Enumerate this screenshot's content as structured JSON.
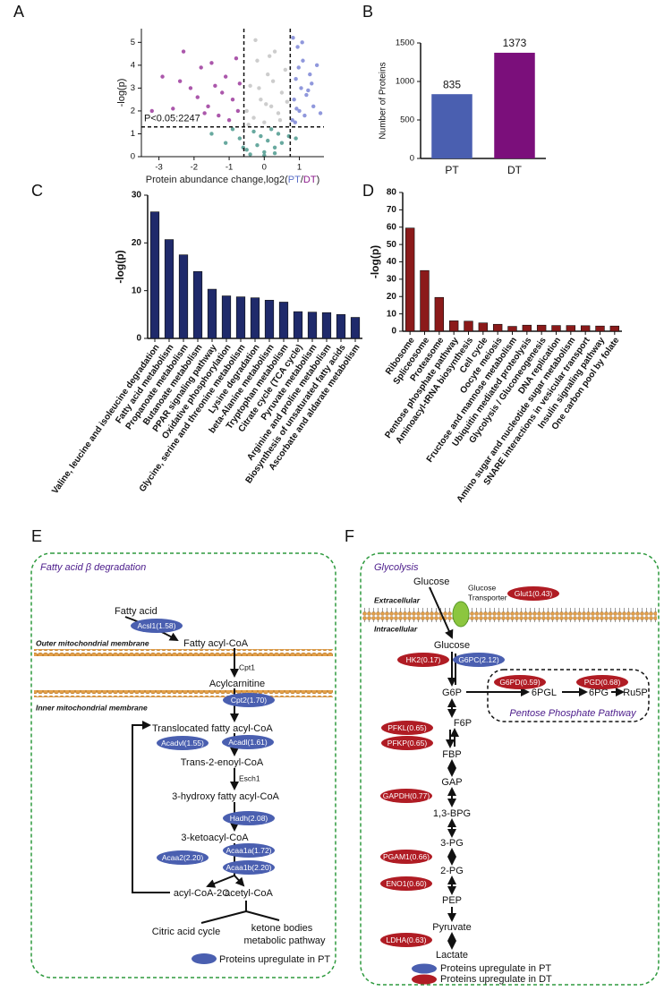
{
  "chart_data": [
    {
      "type": "scatter",
      "panel": "A",
      "ylabel": "-log(p)",
      "xlabel": [
        "Protein abundance change,log2(",
        "PT",
        "/",
        "DT",
        ")"
      ],
      "xlabel_colors": [
        "#222222",
        "#5b6fc7",
        "#222222",
        "#8b1a8b",
        "#222222"
      ],
      "annotation": "P<0.05:2247",
      "xlim": [
        -3.5,
        1.7
      ],
      "ylim": [
        0,
        5.6
      ],
      "xticks": [
        -3,
        -2,
        -1,
        0,
        1
      ],
      "yticks": [
        0,
        1,
        2,
        3,
        4,
        5
      ],
      "thresholds": {
        "x": [
          -0.58,
          0.74
        ],
        "y": 1.3
      },
      "series": [
        {
          "color": "#9c3a9c",
          "x": [
            -2.9,
            -2.6,
            -2.3,
            -2.1,
            -1.9,
            -1.8,
            -1.6,
            -1.5,
            -1.4,
            -1.3,
            -1.2,
            -1.1,
            -1.0,
            -0.9,
            -0.8,
            -0.75,
            -0.7,
            -1.7,
            -2.4,
            -3.2
          ],
          "y": [
            3.5,
            2.1,
            4.6,
            3.0,
            2.6,
            3.9,
            2.2,
            4.1,
            3.1,
            1.8,
            2.8,
            3.5,
            1.6,
            2.5,
            4.3,
            2.0,
            3.2,
            1.9,
            3.3,
            2.0
          ]
        },
        {
          "color": "#7d86d6",
          "x": [
            0.8,
            0.85,
            0.9,
            0.95,
            1.0,
            1.05,
            1.1,
            1.15,
            1.2,
            1.3,
            1.4,
            1.5,
            0.82,
            0.88,
            0.98,
            1.25,
            1.6,
            1.08,
            0.92,
            1.35
          ],
          "y": [
            1.6,
            2.5,
            3.4,
            4.8,
            2.0,
            3.0,
            4.2,
            1.8,
            2.7,
            3.6,
            2.2,
            4.0,
            5.2,
            1.5,
            3.9,
            2.9,
            1.9,
            5.0,
            2.1,
            3.2
          ]
        },
        {
          "color": "#c4c4c4",
          "x": [
            -0.5,
            -0.4,
            -0.3,
            -0.2,
            -0.1,
            0,
            0.1,
            0.2,
            0.3,
            0.4,
            0.5,
            0.6,
            -0.45,
            -0.25,
            0.05,
            0.25,
            0.45,
            0.65,
            -0.15,
            0.15
          ],
          "y": [
            2.0,
            3.1,
            1.7,
            4.2,
            2.5,
            1.5,
            3.6,
            2.2,
            4.6,
            1.9,
            2.8,
            3.8,
            1.4,
            5.1,
            2.3,
            3.3,
            1.6,
            2.4,
            3.0,
            4.4
          ]
        },
        {
          "color": "#4e9a8e",
          "x": [
            -1.5,
            -1.1,
            -0.9,
            -0.7,
            -0.5,
            -0.3,
            -0.2,
            -0.1,
            0,
            0.1,
            0.2,
            0.3,
            0.4,
            0.5,
            0.7,
            0.9,
            -0.4,
            0,
            0.3,
            -0.6
          ],
          "y": [
            1.0,
            0.6,
            1.2,
            0.8,
            0.3,
            1.1,
            0.5,
            0.9,
            0.2,
            0.7,
            1.2,
            0.4,
            1.0,
            0.6,
            0.9,
            0.8,
            0.1,
            0.05,
            0.15,
            0.4
          ]
        }
      ]
    },
    {
      "type": "bar",
      "panel": "B",
      "ylabel": "Number of Proteins",
      "categories": [
        "PT",
        "DT"
      ],
      "values": [
        835,
        1373
      ],
      "colors": [
        "#4a5fb0",
        "#7b0f7b"
      ],
      "ylim": [
        0,
        1500
      ],
      "yticks": [
        0,
        500,
        1000,
        1500
      ]
    },
    {
      "type": "bar",
      "panel": "C",
      "ylabel": "-log(p)",
      "categories": [
        "Valine, leucine and isoleucine degradation",
        "Fatty acid metabolism",
        "Propanoate metabolism",
        "Butanoate metabolism",
        "PPAR signaling pathway",
        "Oxidative phosphorylation",
        "Glycine, serine and threonine metabolism",
        "Lysine degradation",
        "beta-Alanine metabolism",
        "Tryptophan metabolism",
        "Citrate cycle (TCA cycle)",
        "Pyruvate metabolism",
        "Arginine and proline metabolism",
        "Biosynthesis of unsaturated fatty acids",
        "Ascorbate and aldarate metabolism"
      ],
      "values": [
        26.5,
        20.7,
        17.5,
        14,
        10.3,
        8.9,
        8.7,
        8.5,
        8,
        7.6,
        5.6,
        5.5,
        5.4,
        5,
        4.4
      ],
      "color": "#1f2a6b",
      "ylim": [
        0,
        30
      ],
      "yticks": [
        0,
        10,
        20,
        30
      ]
    },
    {
      "type": "bar",
      "panel": "D",
      "ylabel": "-log(p)",
      "categories": [
        "Ribosome",
        "Spliceosome",
        "Proteasome",
        "Pentose phosphate pathway",
        "Aminoacyl-tRNA biosynthesis",
        "Cell cycle",
        "Oocyte meiosis",
        "Fructose and mannose metabolism",
        "Ubiquitin mediated proteolysis",
        "Glycolysis / Gluconeogenesis",
        "DNA replication",
        "Amino sugar and nucleotide sugar metabolism",
        "SNARE interactions in vesicular transport",
        "Insulin signaling pathway",
        "One carbon pool by folate"
      ],
      "values": [
        59.5,
        35,
        19.5,
        6,
        5.8,
        4.8,
        4,
        2.8,
        3.5,
        3.5,
        3.3,
        3.3,
        3.2,
        3,
        3
      ],
      "color": "#8b1a1a",
      "ylim": [
        0,
        80
      ],
      "yticks": [
        0,
        10,
        20,
        30,
        40,
        50,
        60,
        70,
        80
      ]
    }
  ],
  "pathway_e": {
    "panel": "E",
    "title": "Fatty acid β degradation",
    "compounds": [
      "Fatty acid",
      "Fatty acyl-CoA",
      "Acylcarnitine",
      "Translocated fatty acyl-CoA",
      "Trans-2-enoyl-CoA",
      "3-hydroxy fatty acyl-CoA",
      "3-ketoacyl-CoA",
      "acyl-CoA-2C",
      "acetyl-CoA",
      "Citric acid cycle",
      "ketone bodies",
      "metabolic pathway"
    ],
    "membranes": [
      "Outer mitochondrial membrane",
      "Inner mitochondrial membrane"
    ],
    "enzymes_pt": [
      "Acsl1(1.58)",
      "Cpt2(1.70)",
      "Acadvl(1.55)",
      "Acadl(1.61)",
      "Hadh(2.08)",
      "Acaa1a(1.72)",
      "Acaa2(2.20)",
      "Acaa1b(2.20)"
    ],
    "other_enzymes": [
      "Cpt1",
      "Esch1"
    ],
    "legend": "Proteins upregulate in PT"
  },
  "pathway_f": {
    "panel": "F",
    "title": "Glycolysis",
    "compartments": [
      "Extracellular",
      "Intracellular"
    ],
    "transporter": [
      "Glucose",
      "Transporter"
    ],
    "compounds": [
      "Glucose",
      "Glucose",
      "G6P",
      "F6P",
      "FBP",
      "GAP",
      "1,3-BPG",
      "3-PG",
      "2-PG",
      "PEP",
      "Pyruvate",
      "Lactate",
      "6PGL",
      "6PG",
      "Ru5P"
    ],
    "enzymes_dt": [
      "Glut1(0.43)",
      "HK2(0.17)",
      "G6PD(0.59)",
      "PGD(0.68)",
      "PFKL(0.65)",
      "PFKP(0.65)",
      "GAPDH(0.77)",
      "PGAM1(0.66)",
      "ENO1(0.60)",
      "LDHA(0.63)"
    ],
    "enzymes_pt": [
      "G6PC(2.12)"
    ],
    "subpathway": "Pentose Phosphate Pathway",
    "legend": [
      "Proteins upregulate in PT",
      "Proteins upregulate in DT"
    ]
  }
}
